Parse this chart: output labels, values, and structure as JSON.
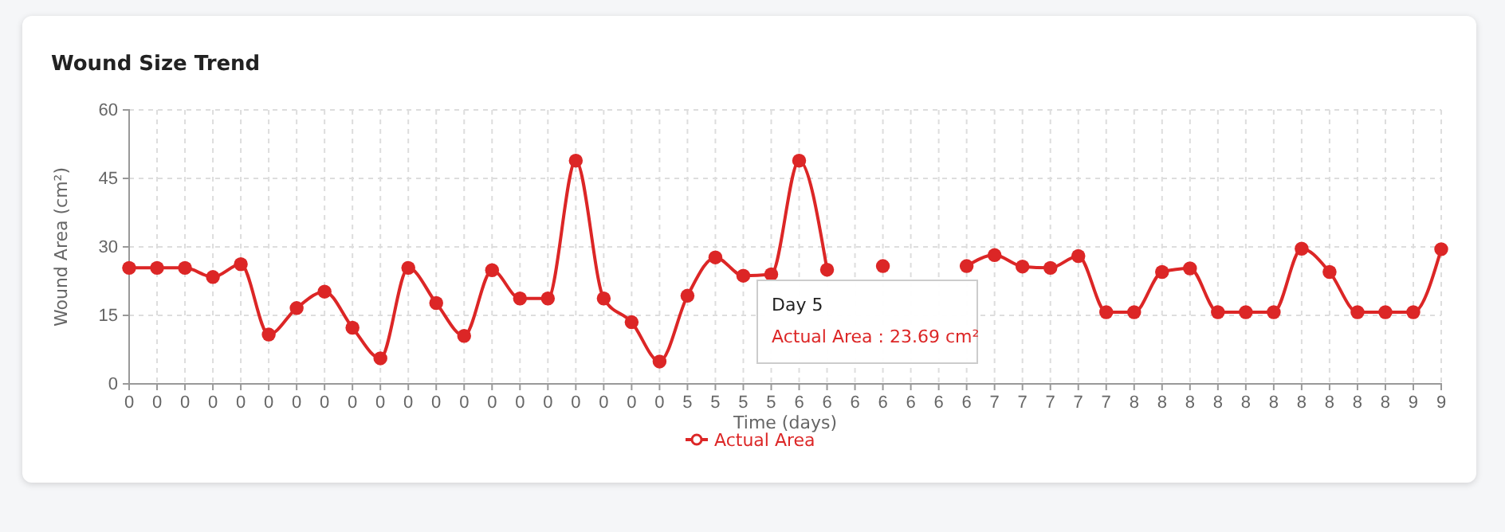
{
  "chart_data": {
    "type": "line",
    "title": "Wound Size Trend",
    "xlabel": "Time (days)",
    "ylabel": "Wound Area (cm²)",
    "categories": [
      "0",
      "0",
      "0",
      "0",
      "0",
      "0",
      "0",
      "0",
      "0",
      "0",
      "0",
      "0",
      "0",
      "0",
      "0",
      "0",
      "0",
      "0",
      "0",
      "0",
      "5",
      "5",
      "5",
      "5",
      "6",
      "6",
      "6",
      "6",
      "6",
      "6",
      "6",
      "7",
      "7",
      "7",
      "7",
      "7",
      "8",
      "8",
      "8",
      "8",
      "8",
      "8",
      "8",
      "8",
      "8",
      "8",
      "9",
      "9"
    ],
    "series": [
      {
        "name": "Actual Area",
        "color": "#dc2626",
        "values": [
          25.4,
          25.4,
          25.4,
          23.4,
          26.2,
          10.8,
          16.6,
          20.2,
          12.3,
          5.6,
          25.4,
          17.7,
          10.5,
          24.9,
          18.7,
          18.7,
          48.9,
          18.7,
          13.5,
          4.9,
          19.3,
          27.7,
          23.69,
          24,
          48.9,
          25,
          null,
          25.8,
          null,
          null,
          25.8,
          28.2,
          25.7,
          25.4,
          28,
          15.7,
          15.7,
          24.5,
          25.3,
          15.7,
          15.7,
          15.7,
          29.6,
          24.5,
          15.7,
          15.7,
          15.7,
          29.5
        ]
      }
    ],
    "ylim": [
      0,
      60
    ],
    "yticks": [
      0,
      15,
      30,
      45,
      60
    ],
    "grid": true,
    "legend": "bottom",
    "marker": "circle",
    "line_style": "solid",
    "annotations": [
      "Day 5",
      "Actual Area : 23.69 cm²"
    ]
  }
}
